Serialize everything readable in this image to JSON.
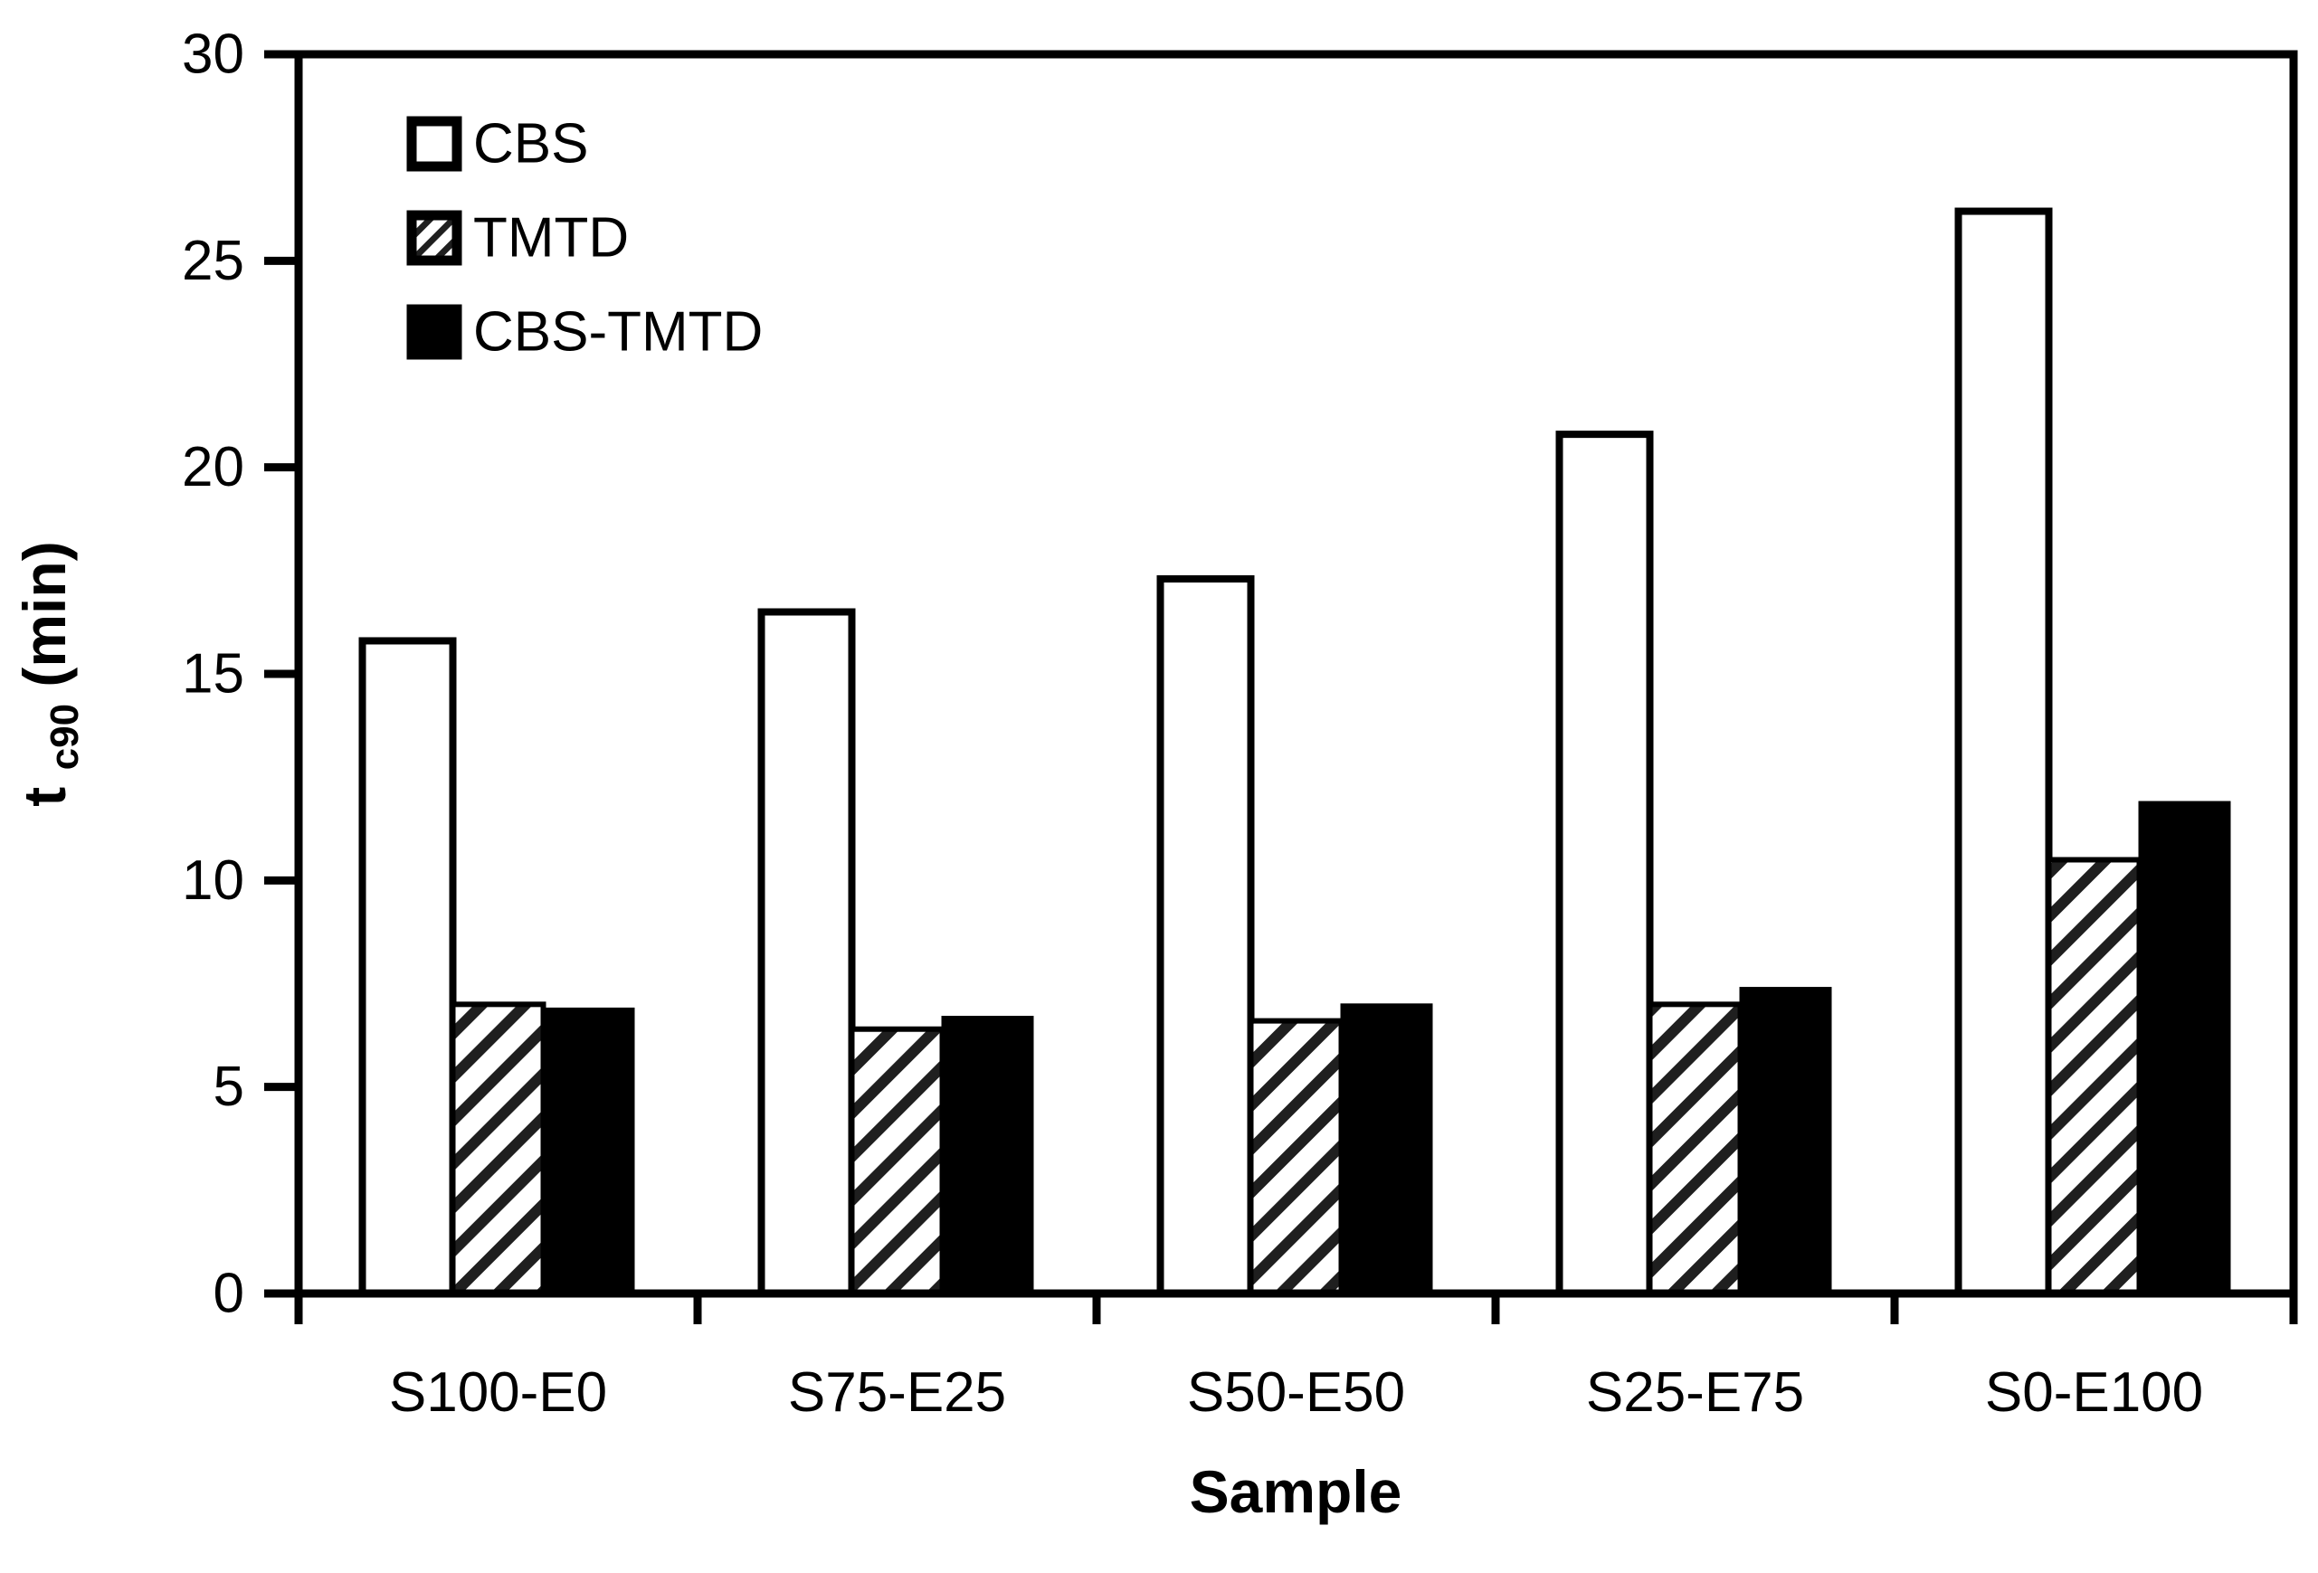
{
  "chart_data": {
    "type": "bar",
    "title": "",
    "xlabel": "Sample",
    "ylabel": {
      "main": "t",
      "sub": "c90",
      "unit": " (min)"
    },
    "ylim": [
      0,
      30
    ],
    "ytick_step": 5,
    "yticks": [
      0,
      5,
      10,
      15,
      20,
      25,
      30
    ],
    "grid": false,
    "legend_position": "top-left-inside",
    "categories": [
      "S100-E0",
      "S75-E25",
      "S50-E50",
      "S25-E75",
      "S0-E100"
    ],
    "series": [
      {
        "name": "CBS",
        "style": "open",
        "values": [
          15.8,
          16.5,
          17.3,
          20.8,
          26.2
        ]
      },
      {
        "name": "TMTD",
        "style": "hatched",
        "values": [
          7.0,
          6.4,
          6.6,
          7.0,
          10.5
        ]
      },
      {
        "name": "CBS-TMTD",
        "style": "solid",
        "values": [
          6.9,
          6.7,
          7.0,
          7.4,
          11.9
        ]
      }
    ],
    "colors": {
      "foreground": "#000000",
      "background": "#ffffff",
      "hatch": "#1f1f1f"
    }
  }
}
